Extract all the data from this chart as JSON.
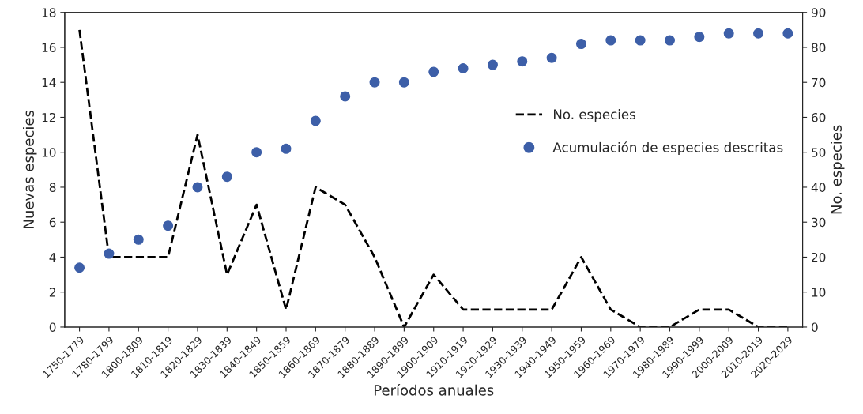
{
  "chart_data": {
    "type": "line",
    "xlabel": "Períodos anuales",
    "ylabel": "Nuevas especies",
    "y2label": "No. especies",
    "categories": [
      "1750-1779",
      "1780-1799",
      "1800-1809",
      "1810-1819",
      "1820-1829",
      "1830-1839",
      "1840-1849",
      "1850-1859",
      "1860-1869",
      "1870-1879",
      "1880-1889",
      "1890-1899",
      "1900-1909",
      "1910-1919",
      "1920-1929",
      "1930-1939",
      "1940-1949",
      "1950-1959",
      "1960-1969",
      "1970-1979",
      "1980-1989",
      "1990-1999",
      "2000-2009",
      "2010-2019",
      "2020-2029"
    ],
    "series": [
      {
        "name": "No. especies",
        "color": "#000000",
        "line_style": "dashed",
        "marker": "none",
        "values": [
          17,
          4,
          4,
          4,
          11,
          3,
          7,
          1,
          8,
          7,
          4,
          0,
          3,
          1,
          1,
          1,
          1,
          4,
          1,
          0,
          0,
          1,
          1,
          0,
          0
        ]
      },
      {
        "name": "Acumulación de especies descritas",
        "type": "scatter",
        "axis": "y2",
        "color": "#3d5fa8",
        "marker": "circle",
        "values": [
          17,
          21,
          25,
          29,
          40,
          43,
          50,
          51,
          59,
          66,
          70,
          70,
          73,
          74,
          75,
          76,
          77,
          81,
          82,
          82,
          82,
          83,
          84,
          84,
          84
        ]
      }
    ],
    "ylim": [
      0,
      18
    ],
    "yticks": [
      0,
      2,
      4,
      6,
      8,
      10,
      12,
      14,
      16,
      18
    ],
    "y2lim": [
      0,
      90
    ],
    "y2ticks": [
      0,
      10,
      20,
      30,
      40,
      50,
      60,
      70,
      80,
      90
    ],
    "grid": false,
    "legend": "right"
  }
}
